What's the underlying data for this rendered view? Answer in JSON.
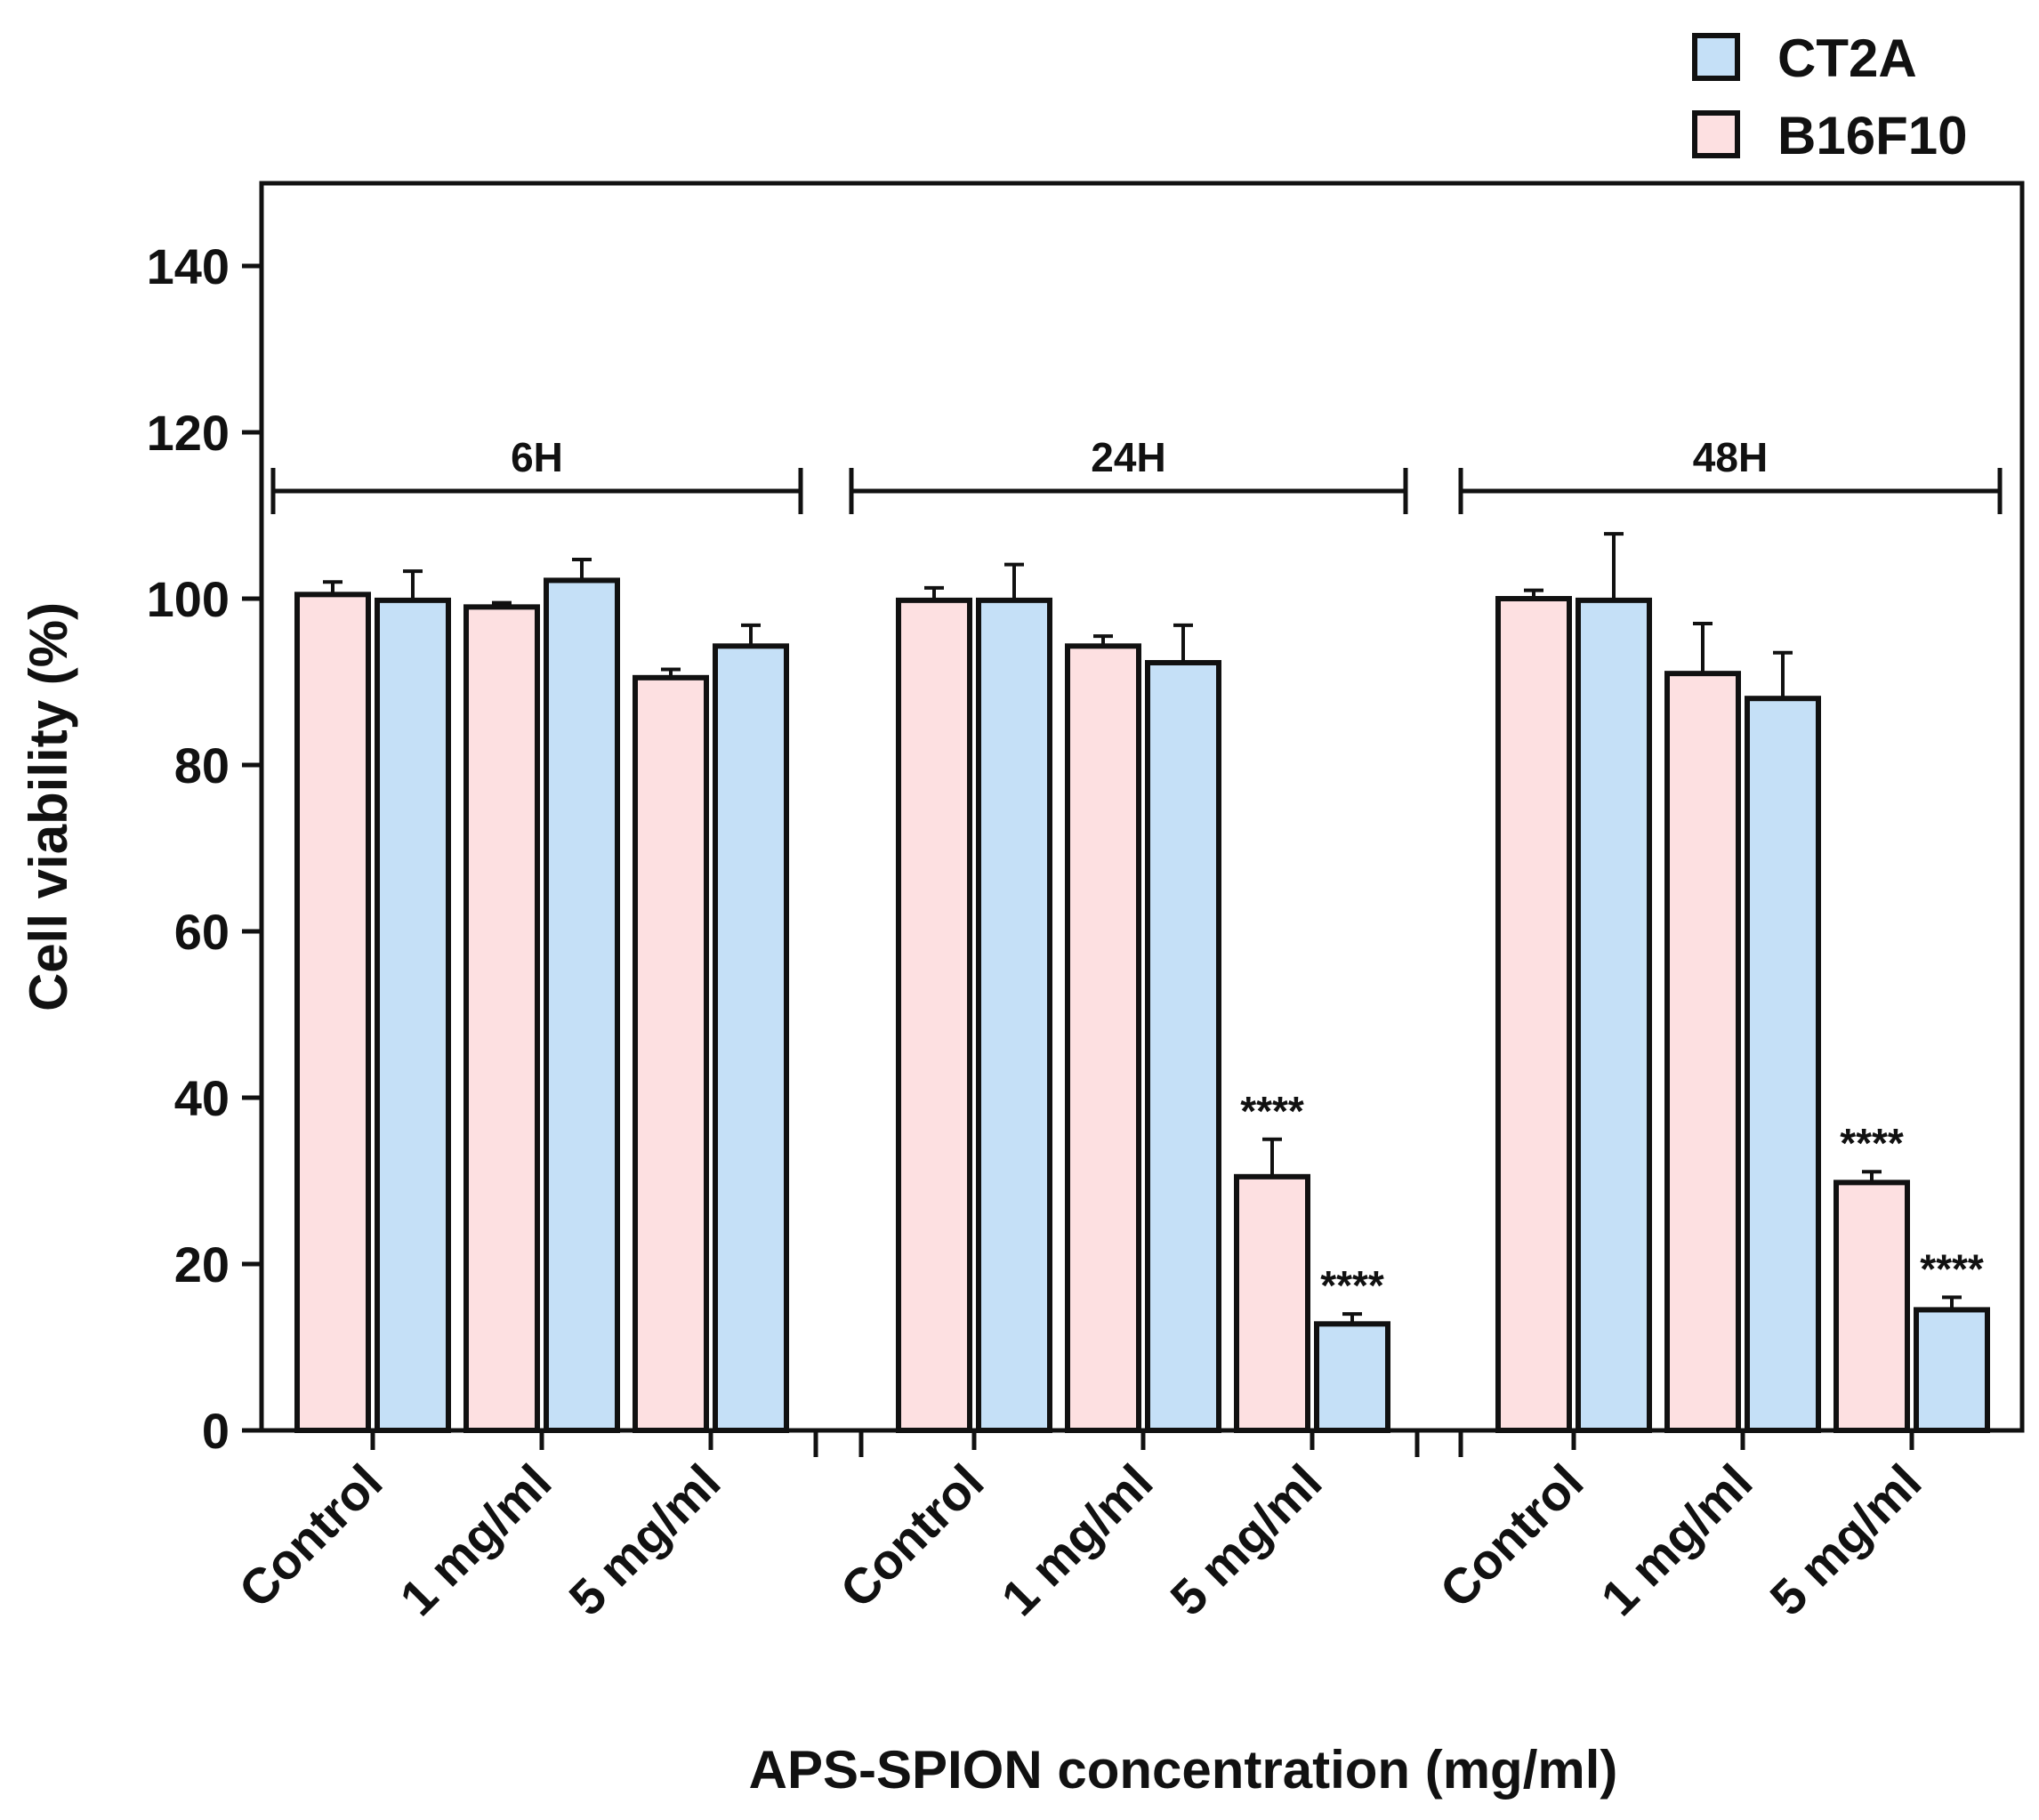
{
  "chart_data": {
    "type": "bar",
    "title": "",
    "xlabel": "APS-SPION concentration (mg/ml)",
    "ylabel": "Cell viability (%)",
    "ylim": [
      0,
      150
    ],
    "yticks": [
      0,
      20,
      40,
      60,
      80,
      100,
      120,
      140
    ],
    "groups": [
      {
        "label": "6H",
        "categories": [
          {
            "label": "Control",
            "B16F10": 100.5,
            "B16F10_err": 1.5,
            "CT2A": 99.8,
            "CT2A_err": 3.5,
            "sig_B16F10": "",
            "sig_CT2A": ""
          },
          {
            "label": "1 mg/ml",
            "B16F10": 99.0,
            "B16F10_err": 0.5,
            "CT2A": 102.2,
            "CT2A_err": 2.5,
            "sig_B16F10": "",
            "sig_CT2A": ""
          },
          {
            "label": "5 mg/ml",
            "B16F10": 90.5,
            "B16F10_err": 1.0,
            "CT2A": 94.3,
            "CT2A_err": 2.5,
            "sig_B16F10": "",
            "sig_CT2A": ""
          }
        ]
      },
      {
        "label": "24H",
        "categories": [
          {
            "label": "Control",
            "B16F10": 99.8,
            "B16F10_err": 1.5,
            "CT2A": 99.8,
            "CT2A_err": 4.3,
            "sig_B16F10": "",
            "sig_CT2A": ""
          },
          {
            "label": "1 mg/ml",
            "B16F10": 94.3,
            "B16F10_err": 1.2,
            "CT2A": 92.3,
            "CT2A_err": 4.5,
            "sig_B16F10": "",
            "sig_CT2A": ""
          },
          {
            "label": "5 mg/ml",
            "B16F10": 30.5,
            "B16F10_err": 4.5,
            "CT2A": 12.8,
            "CT2A_err": 1.2,
            "sig_B16F10": "****",
            "sig_CT2A": "****"
          }
        ]
      },
      {
        "label": "48H",
        "categories": [
          {
            "label": "Control",
            "B16F10": 100.0,
            "B16F10_err": 1.0,
            "CT2A": 99.8,
            "CT2A_err": 8.0,
            "sig_B16F10": "",
            "sig_CT2A": ""
          },
          {
            "label": "1 mg/ml",
            "B16F10": 91.0,
            "B16F10_err": 6.0,
            "CT2A": 88.0,
            "CT2A_err": 5.5,
            "sig_B16F10": "",
            "sig_CT2A": ""
          },
          {
            "label": "5 mg/ml",
            "B16F10": 29.8,
            "B16F10_err": 1.3,
            "CT2A": 14.5,
            "CT2A_err": 1.5,
            "sig_B16F10": "****",
            "sig_CT2A": "****"
          }
        ]
      }
    ],
    "series": [
      {
        "name": "CT2A",
        "color": "#c5e0f7"
      },
      {
        "name": "B16F10",
        "color": "#fde0e1"
      }
    ],
    "legend_order": [
      "CT2A",
      "B16F10"
    ],
    "legend_position": "top-right"
  }
}
